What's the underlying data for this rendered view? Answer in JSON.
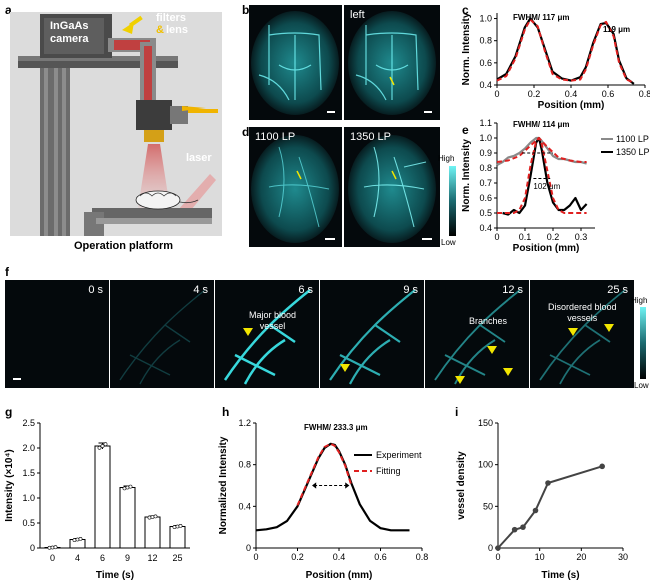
{
  "labels": {
    "a": "a",
    "b": "b",
    "c": "c",
    "d": "d",
    "e": "e",
    "f": "f",
    "g": "g",
    "h": "h",
    "i": "i"
  },
  "panel_a": {
    "camera": "InGaAs\ncamera",
    "filters": "filters",
    "amp": "&",
    "lens": "lens",
    "laser": "laser",
    "caption": "Operation platform"
  },
  "panel_b": {
    "left_label": "left"
  },
  "panel_d": {
    "left_label": "1100 LP",
    "right_label": "1350 LP",
    "cbar_high": "High",
    "cbar_low": "Low"
  },
  "panel_f": {
    "times": [
      "0 s",
      "4 s",
      "6 s",
      "9 s",
      "12 s",
      "25 s"
    ],
    "annot_major": "Major blood\nvessel",
    "annot_branches": "Branches",
    "annot_disordered": "Disordered blood\nvessels",
    "cbar_high": "High",
    "cbar_low": "Low"
  },
  "colors": {
    "cyan": "#2fd4d8",
    "red": "#e02020",
    "yellow": "#f2e600"
  },
  "chart_data": [
    {
      "id": "c",
      "type": "line",
      "title": "FWHM/ 117 μm",
      "annotation": "119 μm",
      "xlabel": "Position (mm)",
      "ylabel": "Norm. Intensity",
      "xlim": [
        0,
        0.8
      ],
      "ylim": [
        0.4,
        1.05
      ],
      "xticks": [
        "0",
        "0.2",
        "0.4",
        "0.6",
        "0.8"
      ],
      "yticks": [
        "0.4",
        "0.6",
        "0.8",
        "1.0"
      ],
      "series": [
        {
          "style": "black-solid",
          "x": [
            0,
            0.05,
            0.1,
            0.15,
            0.18,
            0.22,
            0.26,
            0.3,
            0.35,
            0.4,
            0.45,
            0.48,
            0.52,
            0.56,
            0.59,
            0.63,
            0.66,
            0.7,
            0.74
          ],
          "y": [
            0.45,
            0.5,
            0.66,
            0.92,
            1.0,
            0.92,
            0.72,
            0.52,
            0.46,
            0.44,
            0.47,
            0.56,
            0.78,
            0.95,
            0.96,
            0.86,
            0.62,
            0.46,
            0.41
          ]
        },
        {
          "style": "red-dashed",
          "x": [
            0,
            0.05,
            0.1,
            0.15,
            0.18,
            0.22,
            0.26,
            0.3,
            0.35,
            0.4,
            0.45,
            0.48,
            0.52,
            0.56,
            0.59,
            0.63,
            0.66,
            0.7,
            0.74
          ],
          "y": [
            0.44,
            0.48,
            0.64,
            0.9,
            0.99,
            0.93,
            0.7,
            0.5,
            0.45,
            0.44,
            0.45,
            0.54,
            0.76,
            0.94,
            0.97,
            0.84,
            0.6,
            0.45,
            0.42
          ]
        }
      ]
    },
    {
      "id": "e",
      "type": "line",
      "title": "FWHM/ 114 μm",
      "annotation": "102 μm",
      "xlabel": "Position (mm)",
      "ylabel": "Norm. Intensity",
      "xlim": [
        0,
        0.35
      ],
      "ylim": [
        0.4,
        1.1
      ],
      "xticks": [
        "0",
        "0.1",
        "0.2",
        "0.3"
      ],
      "yticks": [
        "0.4",
        "0.5",
        "0.6",
        "0.7",
        "0.8",
        "0.9",
        "1.0",
        "1.1"
      ],
      "series": [
        {
          "name": "1100 LP",
          "style": "gray-solid",
          "x": [
            0,
            0.02,
            0.04,
            0.06,
            0.08,
            0.1,
            0.12,
            0.14,
            0.15,
            0.16,
            0.18,
            0.2,
            0.22,
            0.24,
            0.26,
            0.28,
            0.3,
            0.32
          ],
          "y": [
            0.82,
            0.84,
            0.87,
            0.88,
            0.9,
            0.93,
            0.97,
            1.0,
            1.0,
            0.98,
            0.93,
            0.88,
            0.86,
            0.86,
            0.85,
            0.84,
            0.84,
            0.83
          ]
        },
        {
          "name": "1350 LP",
          "style": "black-solid",
          "x": [
            0.02,
            0.04,
            0.06,
            0.08,
            0.1,
            0.12,
            0.14,
            0.15,
            0.16,
            0.18,
            0.2,
            0.22,
            0.24,
            0.26,
            0.28,
            0.3,
            0.32
          ],
          "y": [
            0.5,
            0.49,
            0.52,
            0.5,
            0.55,
            0.75,
            0.97,
            1.0,
            0.92,
            0.7,
            0.57,
            0.52,
            0.52,
            0.55,
            0.6,
            0.52,
            0.56
          ]
        },
        {
          "style": "red-dashed",
          "x": [
            0,
            0.02,
            0.04,
            0.06,
            0.08,
            0.1,
            0.12,
            0.14,
            0.15,
            0.16,
            0.18,
            0.2,
            0.22,
            0.24,
            0.26,
            0.28,
            0.3,
            0.32
          ],
          "y": [
            0.5,
            0.5,
            0.5,
            0.5,
            0.52,
            0.6,
            0.82,
            0.98,
            1.0,
            0.96,
            0.78,
            0.6,
            0.52,
            0.5,
            0.5,
            0.5,
            0.5,
            0.5
          ]
        },
        {
          "style": "red-dashed",
          "x": [
            0,
            0.04,
            0.08,
            0.12,
            0.15,
            0.18,
            0.22,
            0.26,
            0.3,
            0.32
          ],
          "y": [
            0.84,
            0.85,
            0.88,
            0.95,
            1.0,
            0.94,
            0.87,
            0.85,
            0.84,
            0.84
          ]
        }
      ]
    },
    {
      "id": "g",
      "type": "bar",
      "xlabel": "Time (s)",
      "ylabel": "Intensity (×10⁴)",
      "ylim": [
        0,
        2.5
      ],
      "yticks": [
        "0",
        "0.5",
        "1.0",
        "1.5",
        "2.0",
        "2.5"
      ],
      "categories": [
        "0",
        "4",
        "6",
        "9",
        "12",
        "25"
      ],
      "values": [
        0.01,
        0.17,
        2.04,
        1.21,
        0.62,
        0.43
      ],
      "errors": [
        0.01,
        0.02,
        0.06,
        0.03,
        0.02,
        0.02
      ]
    },
    {
      "id": "h",
      "type": "line",
      "title": "FWHM/ 233.3 μm",
      "xlabel": "Position (mm)",
      "ylabel": "Normalized Intensity",
      "xlim": [
        0,
        0.8
      ],
      "ylim": [
        0,
        1.2
      ],
      "xticks": [
        "0",
        "0.2",
        "0.4",
        "0.6",
        "0.8"
      ],
      "yticks": [
        "0",
        "0.4",
        "0.8",
        "1.2"
      ],
      "legend": [
        "Experiment",
        "Fitting"
      ],
      "series": [
        {
          "name": "Experiment",
          "style": "black-solid",
          "x": [
            0,
            0.05,
            0.1,
            0.15,
            0.2,
            0.25,
            0.3,
            0.33,
            0.36,
            0.38,
            0.4,
            0.43,
            0.46,
            0.5,
            0.55,
            0.6,
            0.65,
            0.7,
            0.74
          ],
          "y": [
            0.17,
            0.18,
            0.2,
            0.26,
            0.4,
            0.63,
            0.86,
            0.96,
            1.0,
            0.99,
            0.93,
            0.8,
            0.62,
            0.42,
            0.26,
            0.19,
            0.17,
            0.17,
            0.17
          ]
        },
        {
          "name": "Fitting",
          "style": "red-dashed",
          "x": [
            0.2,
            0.25,
            0.3,
            0.33,
            0.36,
            0.38,
            0.4,
            0.43,
            0.46
          ],
          "y": [
            0.41,
            0.64,
            0.87,
            0.97,
            1.0,
            0.98,
            0.92,
            0.79,
            0.6
          ]
        }
      ]
    },
    {
      "id": "i",
      "type": "line",
      "xlabel": "Time (s)",
      "ylabel": "vessel density",
      "xlim": [
        0,
        30
      ],
      "ylim": [
        0,
        150
      ],
      "xticks": [
        "0",
        "10",
        "20",
        "30"
      ],
      "yticks": [
        "0",
        "50",
        "100",
        "150"
      ],
      "x": [
        0,
        4,
        6,
        9,
        12,
        25
      ],
      "y": [
        0,
        22,
        25,
        45,
        78,
        98
      ]
    }
  ]
}
